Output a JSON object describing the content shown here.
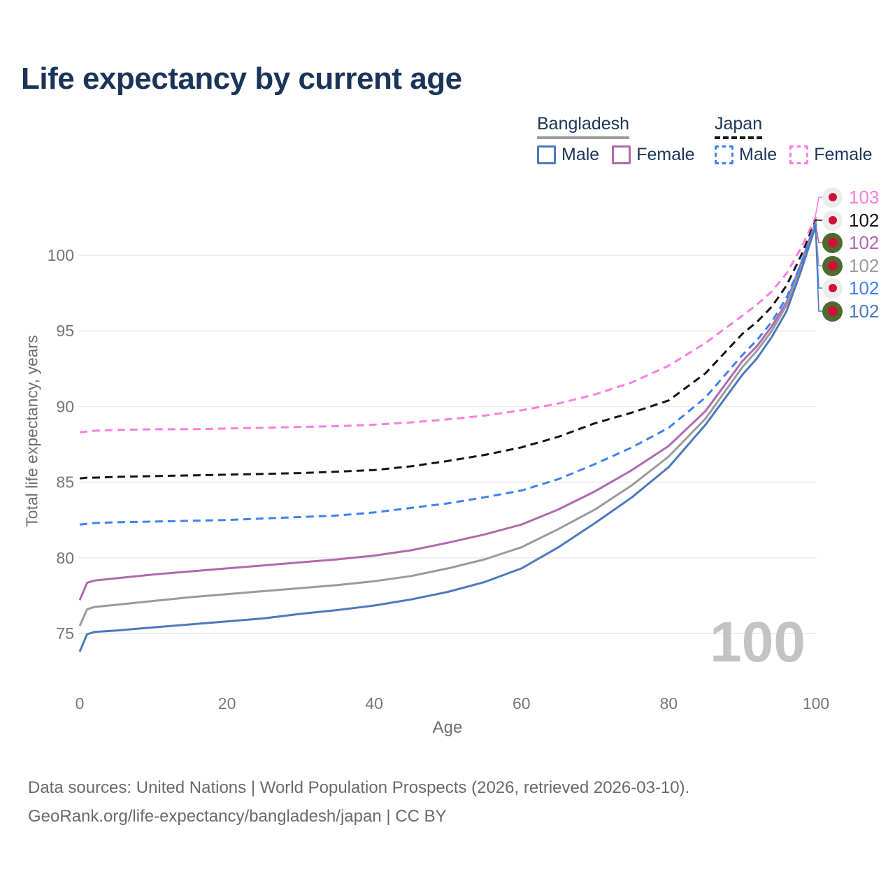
{
  "title": "Life expectancy by current age",
  "legend": {
    "groups": [
      {
        "label": "Bangladesh",
        "color": "#9b9b9b",
        "dash": false,
        "items": [
          {
            "label": "Male",
            "color": "#4d79bd",
            "dash": false
          },
          {
            "label": "Female",
            "color": "#b169ae",
            "dash": false
          }
        ]
      },
      {
        "label": "Japan",
        "color": "#141414",
        "dash": true,
        "items": [
          {
            "label": "Male",
            "color": "#3d82f1",
            "dash": true
          },
          {
            "label": "Female",
            "color": "#fb7de2",
            "dash": true
          }
        ]
      }
    ]
  },
  "watermark": "100",
  "axis": {
    "x_title": "Age",
    "y_title": "Total life expectancy, years"
  },
  "flags": {
    "japan": {
      "bg": "#ececec",
      "dot": "#d0103a",
      "dot_size": 12
    },
    "bangladesh": {
      "bg": "#4e6b2f",
      "dot": "#d0103a",
      "dot_size": 14
    }
  },
  "chart_data": {
    "type": "line",
    "title": "Life expectancy by current age",
    "xlabel": "Age",
    "ylabel": "Total life expectancy, years",
    "xlim": [
      0,
      100
    ],
    "ylim": [
      72.5,
      103.5
    ],
    "x_ticks": [
      0,
      20,
      40,
      60,
      80,
      100
    ],
    "y_ticks": [
      75,
      80,
      85,
      90,
      95,
      100
    ],
    "grid": "horizontal",
    "legend_position": "top-right",
    "x": [
      0,
      1,
      2,
      5,
      10,
      15,
      20,
      25,
      30,
      35,
      40,
      45,
      50,
      55,
      60,
      65,
      70,
      75,
      80,
      85,
      90,
      92,
      94,
      96,
      98,
      100
    ],
    "series": [
      {
        "id": "japan-female",
        "name": "Japan Female",
        "color": "#fb7de2",
        "dash": true,
        "flag": "japan",
        "end_label": "103",
        "values": [
          88.3,
          88.35,
          88.4,
          88.45,
          88.5,
          88.5,
          88.55,
          88.6,
          88.65,
          88.7,
          88.8,
          88.95,
          89.15,
          89.4,
          89.75,
          90.2,
          90.8,
          91.6,
          92.7,
          94.2,
          96.0,
          96.75,
          97.6,
          98.8,
          100.5,
          102.55
        ]
      },
      {
        "id": "japan-total",
        "name": "Japan",
        "color": "#141414",
        "dash": true,
        "flag": "japan",
        "end_label": "102",
        "values": [
          85.25,
          85.3,
          85.3,
          85.35,
          85.4,
          85.45,
          85.5,
          85.55,
          85.6,
          85.7,
          85.8,
          86.05,
          86.4,
          86.8,
          87.3,
          88.0,
          88.9,
          89.6,
          90.4,
          92.2,
          94.8,
          95.6,
          96.6,
          98.0,
          100.0,
          102.35
        ]
      },
      {
        "id": "bangladesh-female",
        "name": "Bangladesh Female",
        "color": "#b169ae",
        "dash": false,
        "flag": "bangladesh",
        "end_label": "102",
        "values": [
          77.2,
          78.35,
          78.5,
          78.65,
          78.9,
          79.1,
          79.3,
          79.5,
          79.7,
          79.9,
          80.15,
          80.5,
          81.0,
          81.55,
          82.2,
          83.2,
          84.4,
          85.8,
          87.4,
          89.7,
          93.0,
          94.0,
          95.3,
          96.9,
          99.5,
          102.25
        ]
      },
      {
        "id": "bangladesh-total",
        "name": "Bangladesh",
        "color": "#9b9b9b",
        "dash": false,
        "flag": "bangladesh",
        "end_label": "102",
        "values": [
          75.5,
          76.6,
          76.75,
          76.9,
          77.15,
          77.4,
          77.6,
          77.8,
          78.0,
          78.2,
          78.45,
          78.8,
          79.3,
          79.9,
          80.7,
          81.9,
          83.2,
          84.8,
          86.7,
          89.2,
          92.6,
          93.7,
          95.0,
          96.7,
          99.2,
          102.15
        ]
      },
      {
        "id": "japan-male",
        "name": "Japan Male",
        "color": "#3d82f1",
        "dash": true,
        "flag": "japan",
        "end_label": "102",
        "values": [
          82.2,
          82.25,
          82.3,
          82.35,
          82.4,
          82.45,
          82.5,
          82.6,
          82.7,
          82.8,
          83.0,
          83.3,
          83.6,
          84.0,
          84.45,
          85.2,
          86.2,
          87.3,
          88.6,
          90.6,
          93.4,
          94.4,
          95.6,
          97.2,
          99.45,
          102.1
        ]
      },
      {
        "id": "bangladesh-male",
        "name": "Bangladesh Male",
        "color": "#4d79bd",
        "dash": false,
        "flag": "bangladesh",
        "end_label": "102",
        "values": [
          73.8,
          74.95,
          75.1,
          75.2,
          75.4,
          75.6,
          75.8,
          76.0,
          76.3,
          76.55,
          76.85,
          77.25,
          77.75,
          78.4,
          79.3,
          80.7,
          82.3,
          84.0,
          86.0,
          88.8,
          92.1,
          93.2,
          94.6,
          96.3,
          99.0,
          102.0
        ]
      }
    ]
  },
  "footer": {
    "line1": "Data sources: United Nations | World Population Prospects (2026, retrieved 2026-03-10).",
    "line2": "GeoRank.org/life-expectancy/bangladesh/japan | CC BY"
  }
}
